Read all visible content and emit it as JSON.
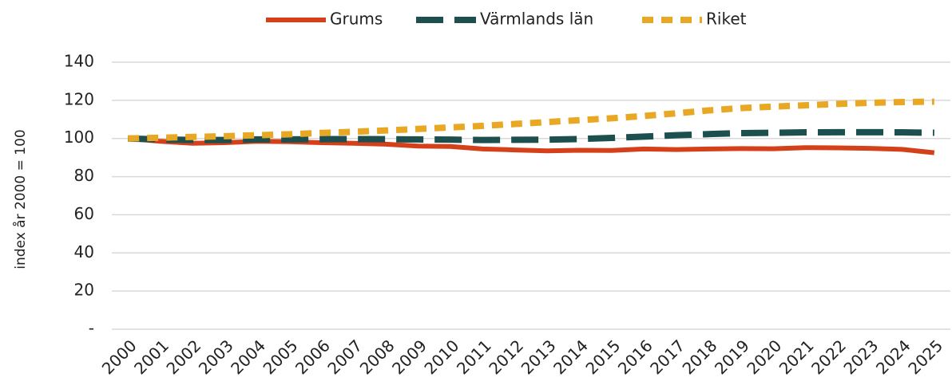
{
  "chart_data": {
    "type": "line",
    "ylabel": "index år 2000 = 100",
    "categories": [
      "2000",
      "2001",
      "2002",
      "2003",
      "2004",
      "2005",
      "2006",
      "2007",
      "2008",
      "2009",
      "2010",
      "2011",
      "2012",
      "2013",
      "2014",
      "2015",
      "2016",
      "2017",
      "2018",
      "2019",
      "2020",
      "2021",
      "2022",
      "2023",
      "2024",
      "2025"
    ],
    "series": [
      {
        "name": "Grums",
        "color": "#d4401a",
        "style": "solid",
        "values": [
          100,
          98.5,
          97.5,
          97.8,
          98.5,
          98.3,
          97.8,
          97.5,
          97,
          96,
          95.8,
          94.5,
          94,
          93.5,
          93.8,
          93.7,
          94.5,
          94.2,
          94.5,
          94.7,
          94.6,
          95.2,
          95.1,
          94.8,
          94.3,
          92.5
        ]
      },
      {
        "name": "Värmlands län",
        "color": "#1d4f4f",
        "style": "longdash",
        "values": [
          100,
          99.5,
          99.2,
          99.2,
          99.5,
          99.5,
          99.6,
          99.7,
          99.6,
          99.5,
          99.4,
          99.2,
          99.3,
          99.4,
          99.7,
          100.3,
          101,
          101.7,
          102.3,
          102.8,
          103,
          103.2,
          103.3,
          103.3,
          103.2,
          103
        ]
      },
      {
        "name": "Riket",
        "color": "#e8a824",
        "style": "shortdash",
        "values": [
          100,
          100.4,
          100.8,
          101.2,
          101.7,
          102.2,
          102.9,
          103.5,
          104.2,
          105,
          105.8,
          106.6,
          107.6,
          108.6,
          109.6,
          110.6,
          111.8,
          113.2,
          114.7,
          115.9,
          116.7,
          117.4,
          118.1,
          118.7,
          119.1,
          119.3
        ]
      }
    ],
    "ylim": [
      0,
      140
    ],
    "yticks": [
      {
        "value": 0,
        "label": "-"
      },
      20,
      40,
      60,
      80,
      100,
      120,
      140
    ],
    "grid": true,
    "legend": "top"
  }
}
